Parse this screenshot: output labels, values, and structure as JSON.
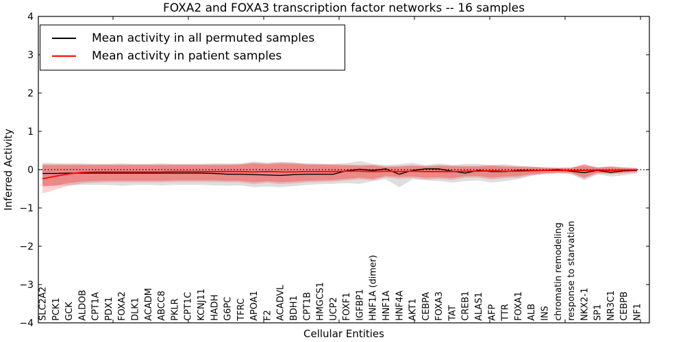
{
  "figure": {
    "background": "#ffffff"
  },
  "chart_data": {
    "type": "line",
    "title": "FOXA2 and FOXA3 transcription factor networks -- 16 samples",
    "xlabel": "Cellular Entities",
    "ylabel": "Inferred Activity",
    "ylim": [
      -4,
      4
    ],
    "xlim_categories": 46,
    "grid": false,
    "legend_position": "upper-left",
    "y_tick_values": [
      4,
      3,
      2,
      1,
      0,
      -1,
      -2,
      -3,
      -4
    ],
    "y_tick_labels": [
      "4",
      "3",
      "2",
      "1",
      "0",
      "−1",
      "−2",
      "−3",
      "−4"
    ],
    "zero_line": {
      "value": 0,
      "style": "dotted",
      "color": "#000000"
    },
    "categories": [
      "SLC2A2",
      "PCK1",
      "GCK",
      "ALDOB",
      "CPT1A",
      "PDX1",
      "FOXA2",
      "DLK1",
      "ACADM",
      "ABCC8",
      "PKLR",
      "CPT1C",
      "KCNJ11",
      "HADH",
      "G6PC",
      "TFRC",
      "APOA1",
      "F2",
      "ACADVL",
      "BDH1",
      "CPT1B",
      "HMGCS1",
      "UCP2",
      "FOXF1",
      "IGFBP1",
      "HNF1A (dimer)",
      "HNF1A",
      "HNF4A",
      "AKT1",
      "CEBPA",
      "FOXA3",
      "TAT",
      "CREB1",
      "ALAS1",
      "AFP",
      "TTR",
      "FOXA1",
      "ALB",
      "INS",
      "chromatin remodeling",
      "response to starvation",
      "NKX2-1",
      "SP1",
      "NR3C1",
      "CEBPB",
      "NF1"
    ],
    "series": [
      {
        "name": "Mean activity in all permuted samples",
        "color": "#000000",
        "values": [
          -0.1,
          -0.1,
          -0.09,
          -0.09,
          -0.09,
          -0.09,
          -0.09,
          -0.09,
          -0.09,
          -0.09,
          -0.09,
          -0.09,
          -0.09,
          -0.1,
          -0.12,
          -0.12,
          -0.13,
          -0.14,
          -0.15,
          -0.13,
          -0.12,
          -0.12,
          -0.12,
          -0.03,
          0.01,
          -0.02,
          0.02,
          -0.12,
          -0.02,
          0.02,
          0.02,
          -0.04,
          -0.09,
          -0.02,
          -0.05,
          -0.05,
          -0.02,
          -0.02,
          -0.02,
          0.0,
          -0.04,
          -0.08,
          -0.02,
          -0.07,
          -0.03,
          -0.02
        ]
      },
      {
        "name": "Mean activity in patient samples",
        "color": "#ff0000",
        "values": [
          -0.24,
          -0.17,
          -0.11,
          -0.07,
          -0.06,
          -0.06,
          -0.06,
          -0.06,
          -0.06,
          -0.06,
          -0.05,
          -0.05,
          -0.05,
          -0.05,
          -0.05,
          -0.05,
          -0.06,
          -0.05,
          -0.06,
          -0.06,
          -0.05,
          -0.05,
          -0.05,
          -0.04,
          -0.04,
          -0.05,
          -0.04,
          -0.05,
          -0.04,
          -0.05,
          -0.05,
          -0.05,
          -0.04,
          -0.04,
          -0.03,
          -0.04,
          -0.04,
          -0.03,
          -0.02,
          -0.02,
          -0.02,
          -0.02,
          -0.01,
          -0.02,
          -0.01,
          -0.01
        ]
      }
    ],
    "bands": [
      {
        "name": "permuted samples spread",
        "fill": "rgba(0,0,0,0.13)",
        "upper": [
          0.18,
          0.17,
          0.16,
          0.16,
          0.15,
          0.15,
          0.16,
          0.15,
          0.15,
          0.16,
          0.15,
          0.15,
          0.15,
          0.16,
          0.16,
          0.16,
          0.21,
          0.18,
          0.2,
          0.19,
          0.16,
          0.15,
          0.15,
          0.17,
          0.22,
          0.15,
          0.12,
          0.14,
          0.18,
          0.12,
          0.16,
          0.12,
          0.15,
          0.15,
          0.12,
          0.14,
          0.1,
          0.08,
          0.06,
          0.05,
          0.06,
          0.1,
          0.06,
          0.08,
          0.07,
          0.05
        ],
        "lower": [
          -0.42,
          -0.41,
          -0.41,
          -0.4,
          -0.4,
          -0.4,
          -0.42,
          -0.4,
          -0.4,
          -0.41,
          -0.4,
          -0.4,
          -0.4,
          -0.41,
          -0.42,
          -0.41,
          -0.46,
          -0.44,
          -0.46,
          -0.43,
          -0.4,
          -0.38,
          -0.37,
          -0.35,
          -0.37,
          -0.3,
          -0.25,
          -0.46,
          -0.25,
          -0.28,
          -0.3,
          -0.34,
          -0.3,
          -0.28,
          -0.34,
          -0.3,
          -0.25,
          -0.16,
          -0.12,
          -0.1,
          -0.12,
          -0.28,
          -0.12,
          -0.18,
          -0.15,
          -0.1
        ]
      },
      {
        "name": "patient samples outer spread",
        "fill": "rgba(255,0,0,0.18)",
        "upper": [
          0.14,
          0.14,
          0.14,
          0.14,
          0.14,
          0.14,
          0.14,
          0.14,
          0.14,
          0.14,
          0.14,
          0.14,
          0.14,
          0.14,
          0.14,
          0.15,
          0.19,
          0.16,
          0.19,
          0.18,
          0.15,
          0.15,
          0.14,
          0.13,
          0.12,
          0.13,
          0.09,
          0.1,
          0.12,
          0.1,
          0.12,
          0.11,
          0.1,
          0.1,
          0.12,
          0.1,
          0.09,
          0.08,
          0.06,
          0.05,
          0.05,
          0.15,
          0.06,
          0.09,
          0.05,
          0.04
        ],
        "lower": [
          -0.62,
          -0.52,
          -0.42,
          -0.36,
          -0.34,
          -0.33,
          -0.33,
          -0.33,
          -0.33,
          -0.33,
          -0.32,
          -0.32,
          -0.32,
          -0.32,
          -0.33,
          -0.33,
          -0.38,
          -0.34,
          -0.38,
          -0.36,
          -0.33,
          -0.32,
          -0.31,
          -0.28,
          -0.25,
          -0.28,
          -0.2,
          -0.24,
          -0.22,
          -0.26,
          -0.24,
          -0.27,
          -0.21,
          -0.21,
          -0.26,
          -0.22,
          -0.21,
          -0.15,
          -0.11,
          -0.09,
          -0.1,
          -0.24,
          -0.1,
          -0.12,
          -0.1,
          -0.07
        ]
      },
      {
        "name": "patient samples inner spread",
        "fill": "rgba(255,0,0,0.25)",
        "upper": [
          0.12,
          0.12,
          0.12,
          0.12,
          0.12,
          0.12,
          0.12,
          0.12,
          0.12,
          0.12,
          0.12,
          0.12,
          0.12,
          0.12,
          0.12,
          0.13,
          0.16,
          0.14,
          0.16,
          0.15,
          0.13,
          0.13,
          0.12,
          0.11,
          0.1,
          0.11,
          0.07,
          0.08,
          0.1,
          0.08,
          0.1,
          0.09,
          0.08,
          0.08,
          0.1,
          0.08,
          0.07,
          0.06,
          0.05,
          0.04,
          0.04,
          0.13,
          0.05,
          0.07,
          0.04,
          0.03
        ],
        "lower": [
          -0.44,
          -0.42,
          -0.35,
          -0.31,
          -0.3,
          -0.29,
          -0.29,
          -0.29,
          -0.29,
          -0.29,
          -0.28,
          -0.28,
          -0.28,
          -0.28,
          -0.29,
          -0.29,
          -0.33,
          -0.3,
          -0.33,
          -0.31,
          -0.29,
          -0.28,
          -0.27,
          -0.24,
          -0.21,
          -0.24,
          -0.16,
          -0.19,
          -0.18,
          -0.21,
          -0.2,
          -0.22,
          -0.17,
          -0.17,
          -0.21,
          -0.18,
          -0.17,
          -0.12,
          -0.09,
          -0.07,
          -0.08,
          -0.2,
          -0.08,
          -0.1,
          -0.08,
          -0.05
        ]
      }
    ]
  },
  "legend": {
    "entries": [
      {
        "label": "Mean activity in all permuted samples",
        "color": "#000000"
      },
      {
        "label": "Mean activity in patient samples",
        "color": "#ff0000"
      }
    ]
  },
  "colors": {
    "permuted_line": "#000000",
    "patient_line": "#ff0000",
    "frame": "#000000",
    "background": "#ffffff"
  }
}
